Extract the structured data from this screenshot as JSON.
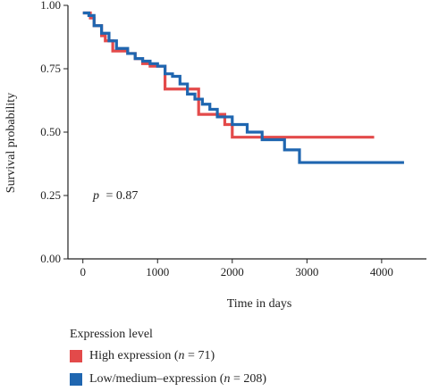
{
  "chart_data": {
    "type": "line",
    "subtype": "kaplan-meier step",
    "xlabel": "Time in days",
    "ylabel": "Survival probability",
    "xlim": [
      -200,
      4600
    ],
    "ylim": [
      0.0,
      1.0
    ],
    "x_ticks": [
      0,
      1000,
      2000,
      3000,
      4000
    ],
    "y_ticks": [
      0.0,
      0.25,
      0.5,
      0.75,
      1.0
    ],
    "y_tick_labels": [
      "0.00",
      "0.25",
      "0.50",
      "0.75",
      "1.00"
    ],
    "grid": false,
    "annotation": {
      "prefix": "p",
      "value": "= 0.87"
    },
    "legend": {
      "title": "Expression level",
      "placement": "bottom",
      "entries": [
        {
          "label": "High expression (",
          "n_symbol": "n",
          "n_text": " = 71)",
          "color": "#e34a4a"
        },
        {
          "label": "Low/medium–expression (",
          "n_symbol": "n",
          "n_text": " = 208)",
          "color": "#1f66b0"
        }
      ]
    },
    "series": [
      {
        "color": "#e34a4a",
        "x": [
          0,
          100,
          150,
          250,
          300,
          400,
          500,
          600,
          700,
          800,
          900,
          1000,
          1100,
          1400,
          1550,
          1600,
          1900,
          2000,
          2400,
          3900
        ],
        "y": [
          0.97,
          0.95,
          0.92,
          0.88,
          0.86,
          0.82,
          0.82,
          0.81,
          0.79,
          0.77,
          0.76,
          0.76,
          0.67,
          0.67,
          0.57,
          0.57,
          0.53,
          0.48,
          0.48,
          0.48
        ]
      },
      {
        "color": "#1f66b0",
        "x": [
          0,
          80,
          150,
          250,
          350,
          450,
          600,
          700,
          800,
          900,
          1000,
          1100,
          1200,
          1300,
          1400,
          1500,
          1600,
          1700,
          1800,
          2000,
          2200,
          2400,
          2700,
          2900,
          4300
        ],
        "y": [
          0.97,
          0.96,
          0.92,
          0.89,
          0.86,
          0.83,
          0.81,
          0.79,
          0.78,
          0.77,
          0.76,
          0.73,
          0.72,
          0.69,
          0.65,
          0.63,
          0.61,
          0.59,
          0.56,
          0.53,
          0.5,
          0.47,
          0.43,
          0.38,
          0.38
        ]
      }
    ]
  }
}
